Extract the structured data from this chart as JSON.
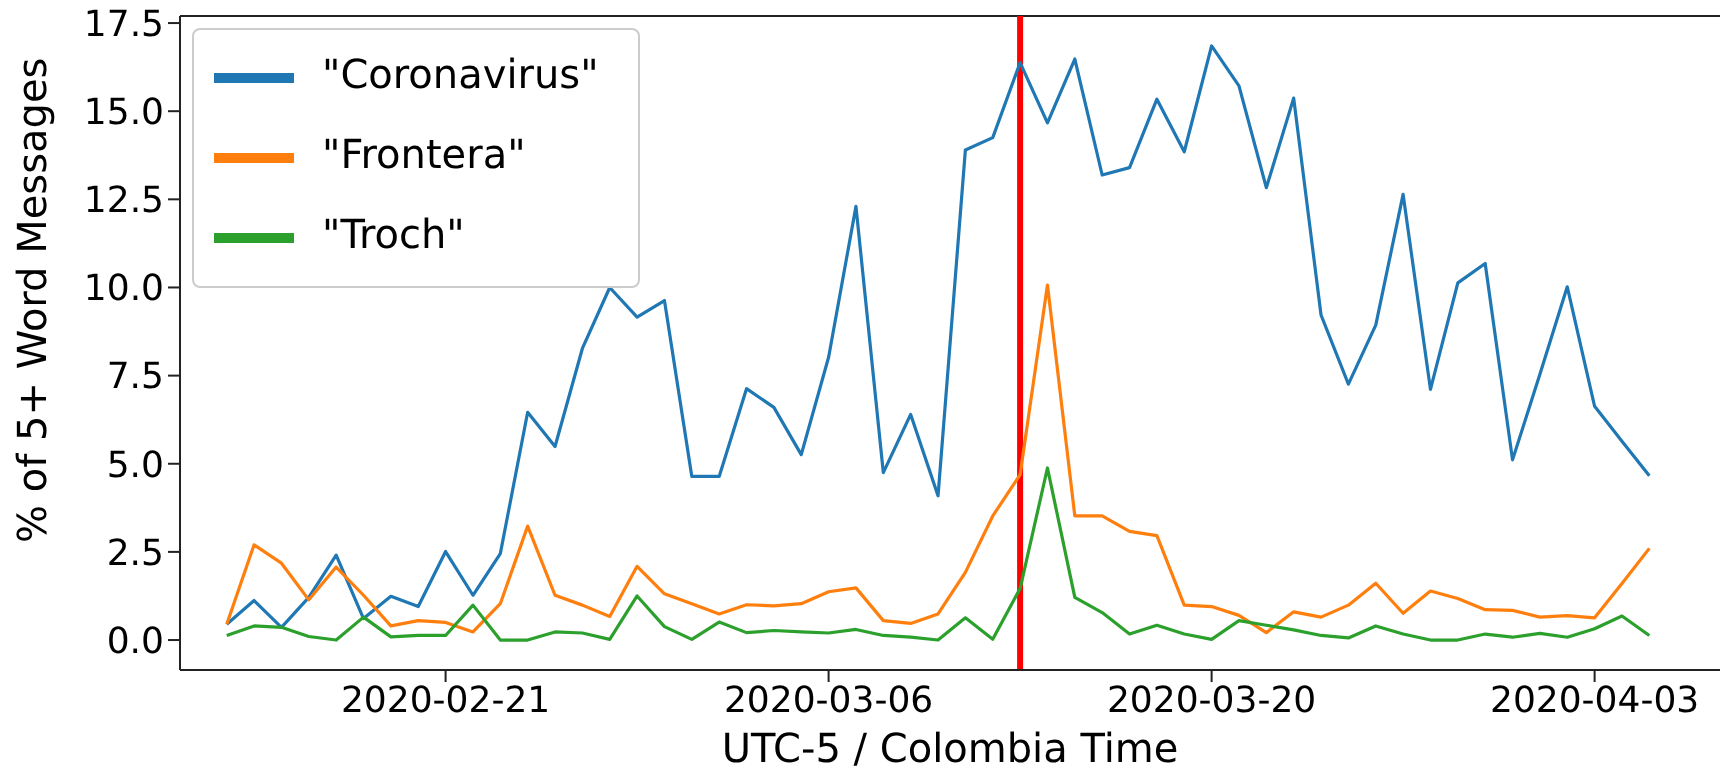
{
  "chart_data": {
    "type": "line",
    "xlabel": "UTC-5 / Colombia Time",
    "ylabel": "% of 5+ Word Messages",
    "x": [
      "2020-02-13",
      "2020-02-14",
      "2020-02-15",
      "2020-02-16",
      "2020-02-17",
      "2020-02-18",
      "2020-02-19",
      "2020-02-20",
      "2020-02-21",
      "2020-02-22",
      "2020-02-23",
      "2020-02-24",
      "2020-02-25",
      "2020-02-26",
      "2020-02-27",
      "2020-02-28",
      "2020-02-29",
      "2020-03-01",
      "2020-03-02",
      "2020-03-03",
      "2020-03-04",
      "2020-03-05",
      "2020-03-06",
      "2020-03-07",
      "2020-03-08",
      "2020-03-09",
      "2020-03-10",
      "2020-03-11",
      "2020-03-12",
      "2020-03-13",
      "2020-03-14",
      "2020-03-15",
      "2020-03-16",
      "2020-03-17",
      "2020-03-18",
      "2020-03-19",
      "2020-03-20",
      "2020-03-21",
      "2020-03-22",
      "2020-03-23",
      "2020-03-24",
      "2020-03-25",
      "2020-03-26",
      "2020-03-27",
      "2020-03-28",
      "2020-03-29",
      "2020-03-30",
      "2020-03-31",
      "2020-04-01",
      "2020-04-02",
      "2020-04-03",
      "2020-04-04",
      "2020-04-05"
    ],
    "series": [
      {
        "name": "\"Coronavirus\"",
        "color": "#1f77b4",
        "values": [
          0.45,
          1.12,
          0.36,
          1.21,
          2.41,
          0.61,
          1.24,
          0.95,
          2.51,
          1.27,
          2.45,
          6.46,
          5.49,
          8.27,
          10.0,
          9.16,
          9.63,
          4.64,
          4.64,
          7.13,
          6.6,
          5.26,
          8.02,
          12.3,
          4.75,
          6.4,
          4.09,
          13.9,
          14.25,
          16.38,
          14.67,
          16.48,
          13.19,
          13.4,
          15.34,
          13.85,
          16.85,
          15.72,
          12.83,
          15.37,
          9.22,
          7.26,
          8.93,
          12.64,
          7.11,
          10.13,
          10.68,
          5.11,
          7.54,
          10.02,
          6.63,
          5.64,
          4.66
        ]
      },
      {
        "name": "\"Frontera\"",
        "color": "#ff7f0e",
        "values": [
          0.45,
          2.7,
          2.18,
          1.14,
          2.07,
          1.27,
          0.4,
          0.55,
          0.5,
          0.23,
          1.03,
          3.23,
          1.27,
          0.99,
          0.67,
          2.09,
          1.31,
          1.03,
          0.74,
          1.0,
          0.97,
          1.03,
          1.37,
          1.48,
          0.55,
          0.47,
          0.74,
          1.92,
          3.52,
          4.69,
          10.07,
          3.52,
          3.52,
          3.08,
          2.96,
          0.99,
          0.95,
          0.7,
          0.21,
          0.8,
          0.65,
          0.99,
          1.61,
          0.76,
          1.39,
          1.18,
          0.86,
          0.84,
          0.65,
          0.69,
          0.63,
          1.6,
          2.6
        ]
      },
      {
        "name": "\"Troch\"",
        "color": "#2ca02c",
        "values": [
          0.13,
          0.4,
          0.36,
          0.1,
          0.0,
          0.65,
          0.09,
          0.13,
          0.13,
          0.99,
          0.0,
          0.0,
          0.23,
          0.2,
          0.02,
          1.25,
          0.38,
          0.02,
          0.51,
          0.21,
          0.27,
          0.23,
          0.2,
          0.3,
          0.13,
          0.08,
          0.0,
          0.63,
          0.02,
          1.46,
          4.88,
          1.21,
          0.78,
          0.17,
          0.42,
          0.17,
          0.02,
          0.55,
          0.42,
          0.29,
          0.13,
          0.06,
          0.4,
          0.17,
          0.0,
          0.0,
          0.17,
          0.08,
          0.19,
          0.08,
          0.32,
          0.68,
          0.13
        ]
      }
    ],
    "xlim": [
      "2020-02-11T07:00",
      "2020-04-07T14:00"
    ],
    "xticks": [
      "2020-02-21",
      "2020-03-06",
      "2020-03-20",
      "2020-04-03"
    ],
    "ylim": [
      -0.85,
      17.7
    ],
    "yticks": [
      {
        "value": 0,
        "label": "0.0"
      },
      {
        "value": 2.5,
        "label": "2.5"
      },
      {
        "value": 5,
        "label": "5.0"
      },
      {
        "value": 7.5,
        "label": "7.5"
      },
      {
        "value": 10,
        "label": "10.0"
      },
      {
        "value": 12.5,
        "label": "12.5"
      },
      {
        "value": 15,
        "label": "15.0"
      },
      {
        "value": 17.5,
        "label": "17.5"
      }
    ],
    "ref_lines": [
      {
        "axis": "x",
        "value": "2020-03-13",
        "color": "#ff0000"
      }
    ],
    "grid": false,
    "legend": "top left",
    "marker": "none",
    "line_style": "solid"
  }
}
